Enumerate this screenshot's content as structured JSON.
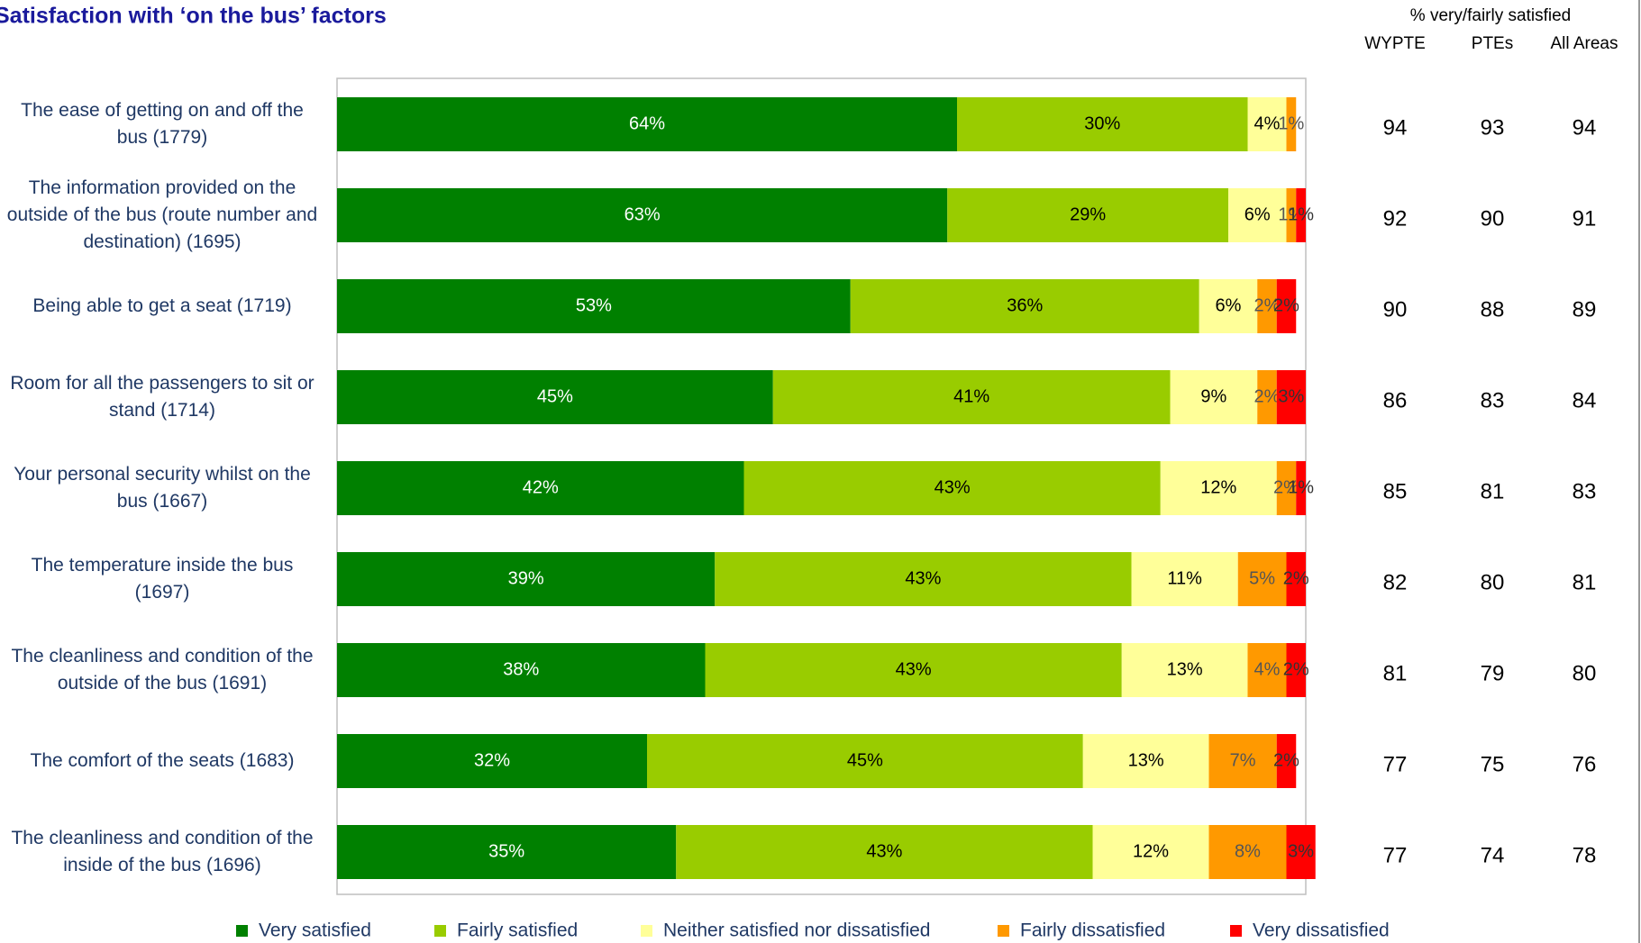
{
  "chart_data": {
    "type": "stacked-barh",
    "title": "Satisfaction with ‘on the bus’ factors",
    "categories": [
      "The ease of getting on and off the bus (1779)",
      "The information provided on the outside of the bus (route number and destination) (1695)",
      "Being able to get a seat (1719)",
      "Room for all the passengers to sit or stand (1714)",
      "Your personal security whilst on the bus (1667)",
      "The temperature inside the bus (1697)",
      "The cleanliness and condition of the outside of the bus (1691)",
      "The comfort of the seats (1683)",
      "The cleanliness and condition of the inside of the bus (1696)"
    ],
    "xlim": [
      0,
      100
    ],
    "legend": "bottom",
    "series": [
      {
        "name": "Very satisfied",
        "color": "#008000",
        "label_color": "#ffffff",
        "values": [
          64,
          63,
          53,
          45,
          42,
          39,
          38,
          32,
          35
        ],
        "value_labels": [
          "64%",
          "63%",
          "53%",
          "45%",
          "42%",
          "39%",
          "38%",
          "32%",
          "35%"
        ]
      },
      {
        "name": "Fairly satisfied",
        "color": "#99cc00",
        "label_color": "#000000",
        "values": [
          30,
          29,
          36,
          41,
          43,
          43,
          43,
          45,
          43
        ],
        "value_labels": [
          "30%",
          "29%",
          "36%",
          "41%",
          "43%",
          "43%",
          "43%",
          "45%",
          "43%"
        ]
      },
      {
        "name": "Neither satisfied nor dissatisfied",
        "color": "#ffff99",
        "label_color": "#000000",
        "values": [
          4,
          6,
          6,
          9,
          12,
          11,
          13,
          13,
          12
        ],
        "value_labels": [
          "4%",
          "6%",
          "6%",
          "9%",
          "12%",
          "11%",
          "13%",
          "13%",
          "12%"
        ]
      },
      {
        "name": "Fairly dissatisfied",
        "color": "#ff9900",
        "label_color": "#555555",
        "values": [
          1,
          1,
          2,
          2,
          2,
          5,
          4,
          7,
          8
        ],
        "value_labels": [
          "1%",
          "1%",
          "2%",
          "2%",
          "2%",
          "5%",
          "4%",
          "7%",
          "8%"
        ]
      },
      {
        "name": "Very dissatisfied",
        "color": "#ff0000",
        "label_color": "#333333",
        "values": [
          null,
          1,
          2,
          3,
          1,
          2,
          2,
          2,
          3
        ],
        "value_labels": [
          null,
          "1%",
          "2%",
          "3%",
          "1%",
          "2%",
          "2%",
          "2%",
          "3%"
        ]
      }
    ]
  },
  "table": {
    "title": "% very/fairly satisfied",
    "columns": [
      "WYPTE",
      "PTEs",
      "All Areas"
    ],
    "rows": [
      [
        94,
        93,
        94
      ],
      [
        92,
        90,
        91
      ],
      [
        90,
        88,
        89
      ],
      [
        86,
        83,
        84
      ],
      [
        85,
        81,
        83
      ],
      [
        82,
        80,
        81
      ],
      [
        81,
        79,
        80
      ],
      [
        77,
        75,
        76
      ],
      [
        77,
        74,
        78
      ]
    ]
  }
}
